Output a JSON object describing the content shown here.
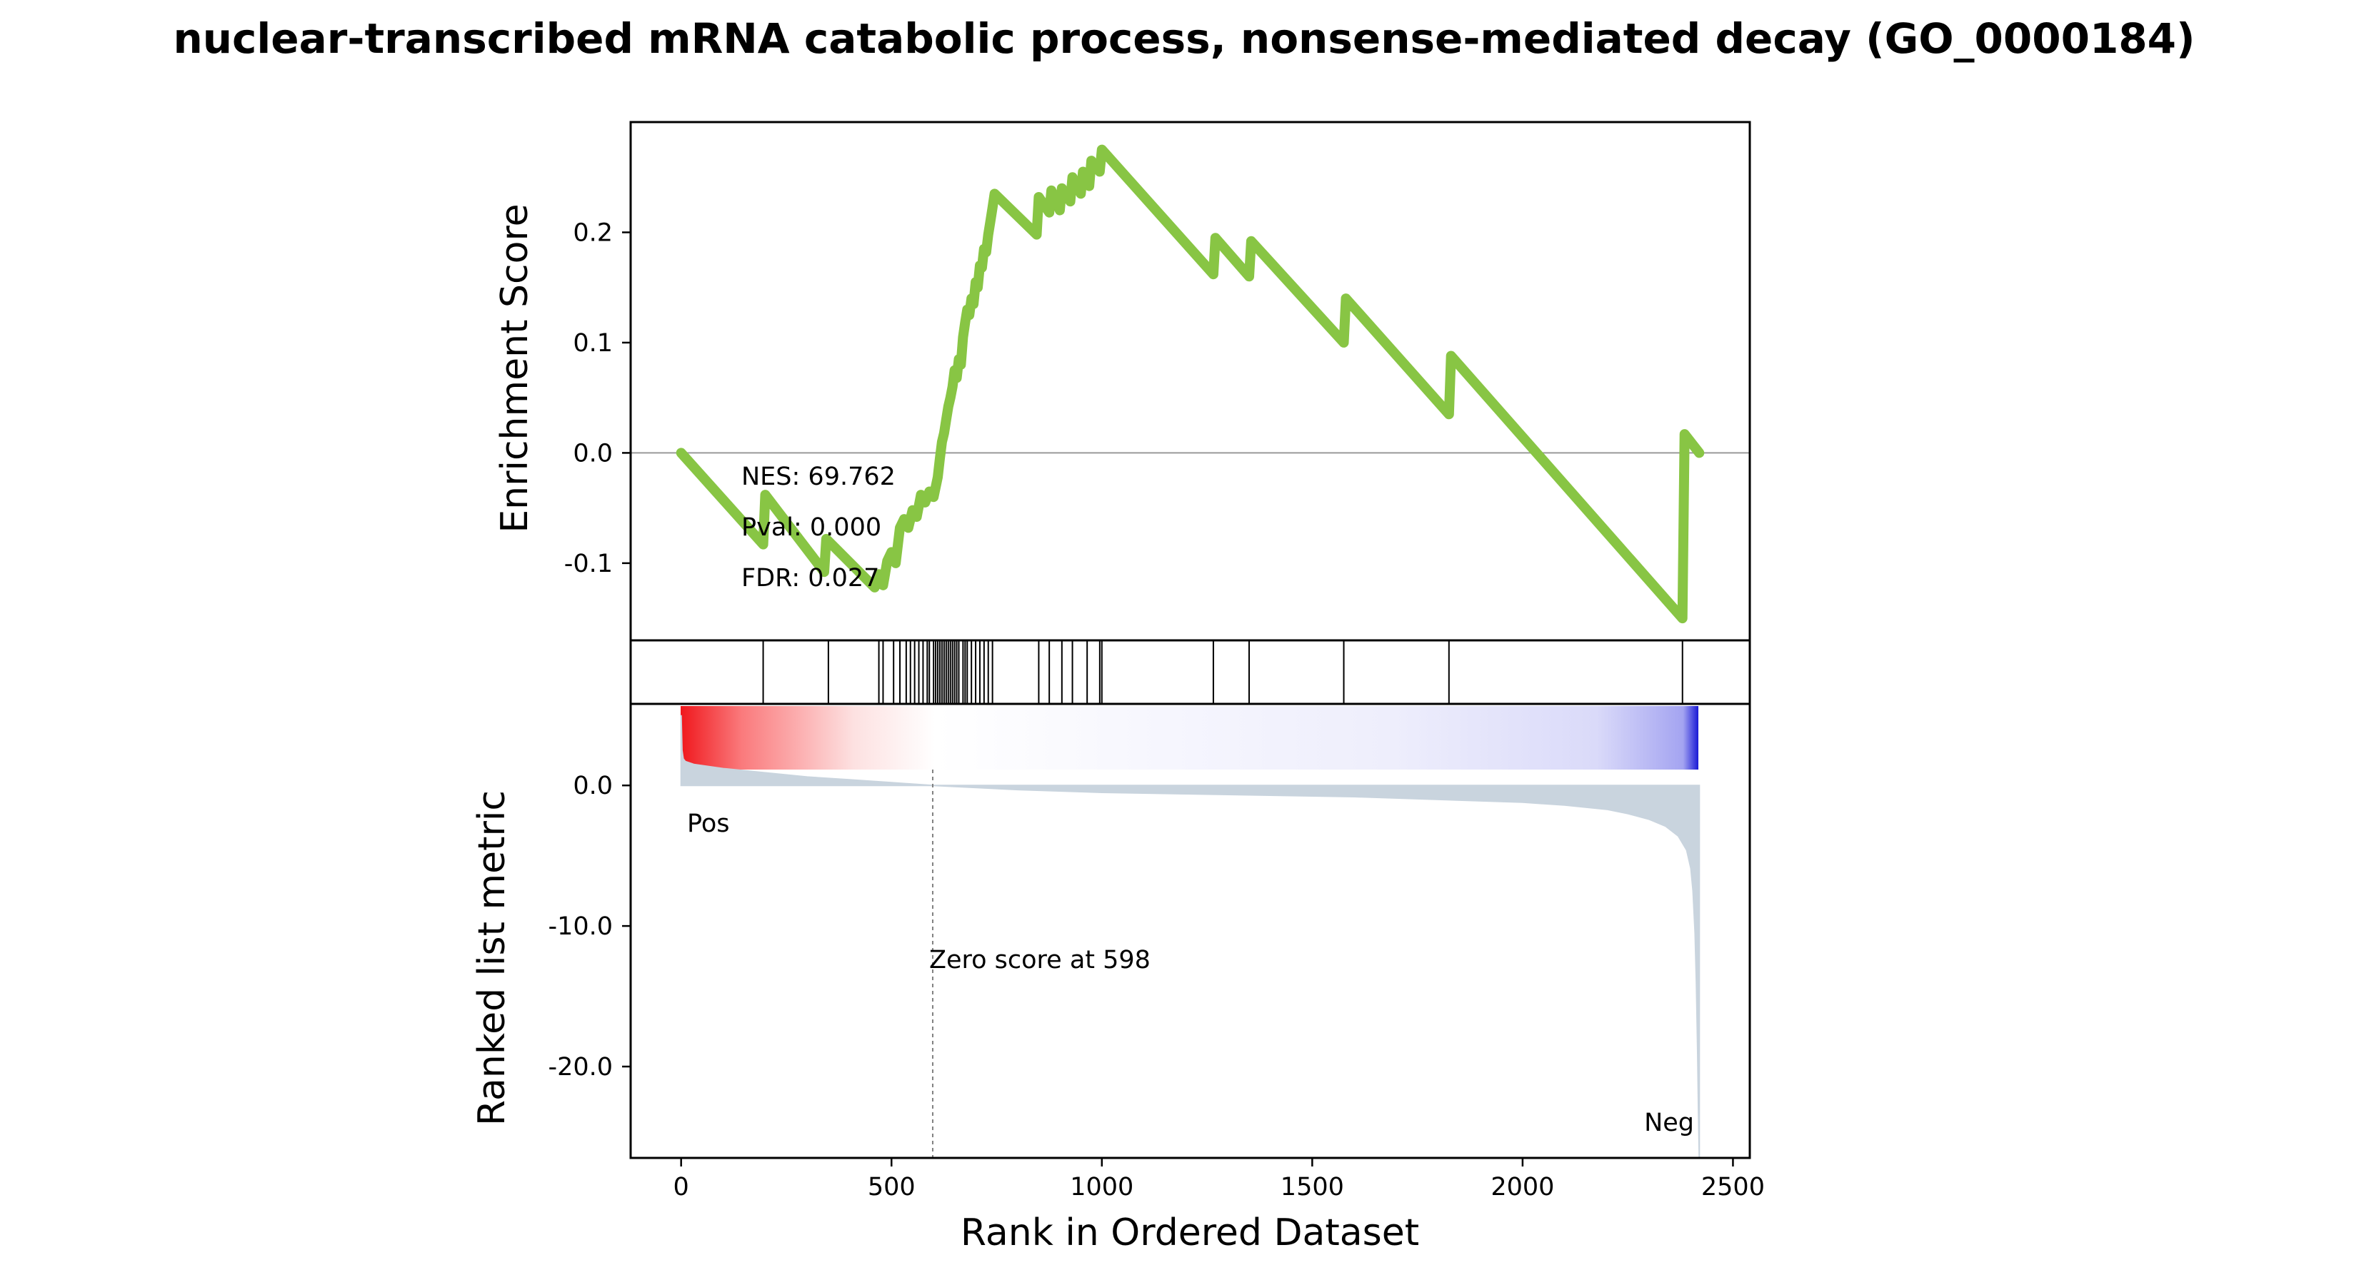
{
  "chart_data": {
    "type": "line",
    "title": "nuclear-transcribed mRNA catabolic process, nonsense-mediated decay (GO_0000184)",
    "xlabel": "Rank in Ordered Dataset",
    "xlim": [
      -120,
      2540
    ],
    "xticks": [
      "0",
      "500",
      "1000",
      "1500",
      "2000",
      "2500"
    ],
    "xtick_values": [
      0,
      500,
      1000,
      1500,
      2000,
      2500
    ],
    "enrichment_plot": {
      "ylabel": "Enrichment Score",
      "ylim": [
        -0.17,
        0.3
      ],
      "yticks": [
        "-0.1",
        "0.0",
        "0.1",
        "0.2"
      ],
      "ytick_values": [
        -0.1,
        0.0,
        0.1,
        0.2
      ],
      "line_color": "#88c544",
      "stats": {
        "nes": "NES: 69.762",
        "pval": "Pval: 0.000",
        "fdr": "FDR: 0.027"
      },
      "series": [
        {
          "x": [
            0,
            195,
            200,
            340,
            345,
            460,
            470,
            480,
            490,
            500,
            510,
            520,
            530,
            540,
            550,
            560,
            570,
            580,
            590,
            600,
            610,
            615,
            620,
            625,
            630,
            635,
            640,
            645,
            650,
            655,
            660,
            665,
            670,
            675,
            680,
            685,
            690,
            695,
            700,
            705,
            710,
            715,
            720,
            725,
            730,
            735,
            740,
            745,
            845,
            850,
            875,
            880,
            900,
            905,
            925,
            930,
            950,
            955,
            970,
            975,
            995,
            1000,
            1265,
            1270,
            1350,
            1355,
            1575,
            1580,
            1825,
            1830,
            2380,
            2385,
            2420
          ],
          "y": [
            0.0,
            -0.083,
            -0.038,
            -0.108,
            -0.078,
            -0.122,
            -0.11,
            -0.12,
            -0.098,
            -0.09,
            -0.1,
            -0.068,
            -0.06,
            -0.068,
            -0.052,
            -0.058,
            -0.038,
            -0.045,
            -0.035,
            -0.04,
            -0.022,
            -0.005,
            0.01,
            0.018,
            0.03,
            0.042,
            0.05,
            0.06,
            0.075,
            0.068,
            0.085,
            0.08,
            0.105,
            0.118,
            0.13,
            0.125,
            0.14,
            0.135,
            0.155,
            0.15,
            0.17,
            0.168,
            0.185,
            0.182,
            0.198,
            0.21,
            0.222,
            0.235,
            0.198,
            0.232,
            0.218,
            0.238,
            0.22,
            0.24,
            0.228,
            0.25,
            0.235,
            0.255,
            0.242,
            0.265,
            0.255,
            0.275,
            0.162,
            0.195,
            0.16,
            0.192,
            0.1,
            0.14,
            0.035,
            0.088,
            -0.15,
            0.017,
            0.0
          ]
        }
      ]
    },
    "hit_marks": {
      "ranks": [
        195,
        350,
        470,
        480,
        505,
        520,
        535,
        545,
        555,
        565,
        575,
        585,
        590,
        600,
        605,
        610,
        615,
        620,
        625,
        630,
        635,
        640,
        645,
        650,
        655,
        660,
        670,
        675,
        680,
        690,
        700,
        710,
        720,
        730,
        740,
        850,
        875,
        905,
        930,
        965,
        995,
        1000,
        1265,
        1350,
        1575,
        1825,
        2380
      ]
    },
    "ranked_metric_plot": {
      "ylabel": "Ranked list metric",
      "ylim": [
        -26.5,
        5.8
      ],
      "yticks": [
        "0.0",
        "-10.0",
        "-20.0"
      ],
      "ytick_values": [
        0,
        -10,
        -20
      ],
      "pos_label": "Pos",
      "neg_label": "Neg",
      "pos_color": "#e8000b",
      "neg_color": "#0000cc",
      "fill_color": "#c9d4de",
      "zero_cross_rank": 598,
      "zero_cross_text": "Zero score at 598",
      "metric_curve": {
        "x": [
          0,
          2,
          5,
          10,
          30,
          100,
          200,
          300,
          400,
          500,
          598,
          800,
          1000,
          1200,
          1400,
          1600,
          1800,
          2000,
          2100,
          2200,
          2250,
          2300,
          2340,
          2370,
          2390,
          2400,
          2405,
          2410,
          2413,
          2416,
          2418,
          2420
        ],
        "y": [
          5.0,
          2.5,
          1.9,
          1.7,
          1.5,
          1.2,
          0.9,
          0.6,
          0.4,
          0.2,
          0.0,
          -0.3,
          -0.5,
          -0.6,
          -0.7,
          -0.8,
          -1.0,
          -1.2,
          -1.4,
          -1.7,
          -2.0,
          -2.4,
          -2.9,
          -3.6,
          -4.6,
          -5.9,
          -7.5,
          -10.5,
          -14.0,
          -19.0,
          -23.0,
          -26.5
        ]
      }
    }
  }
}
